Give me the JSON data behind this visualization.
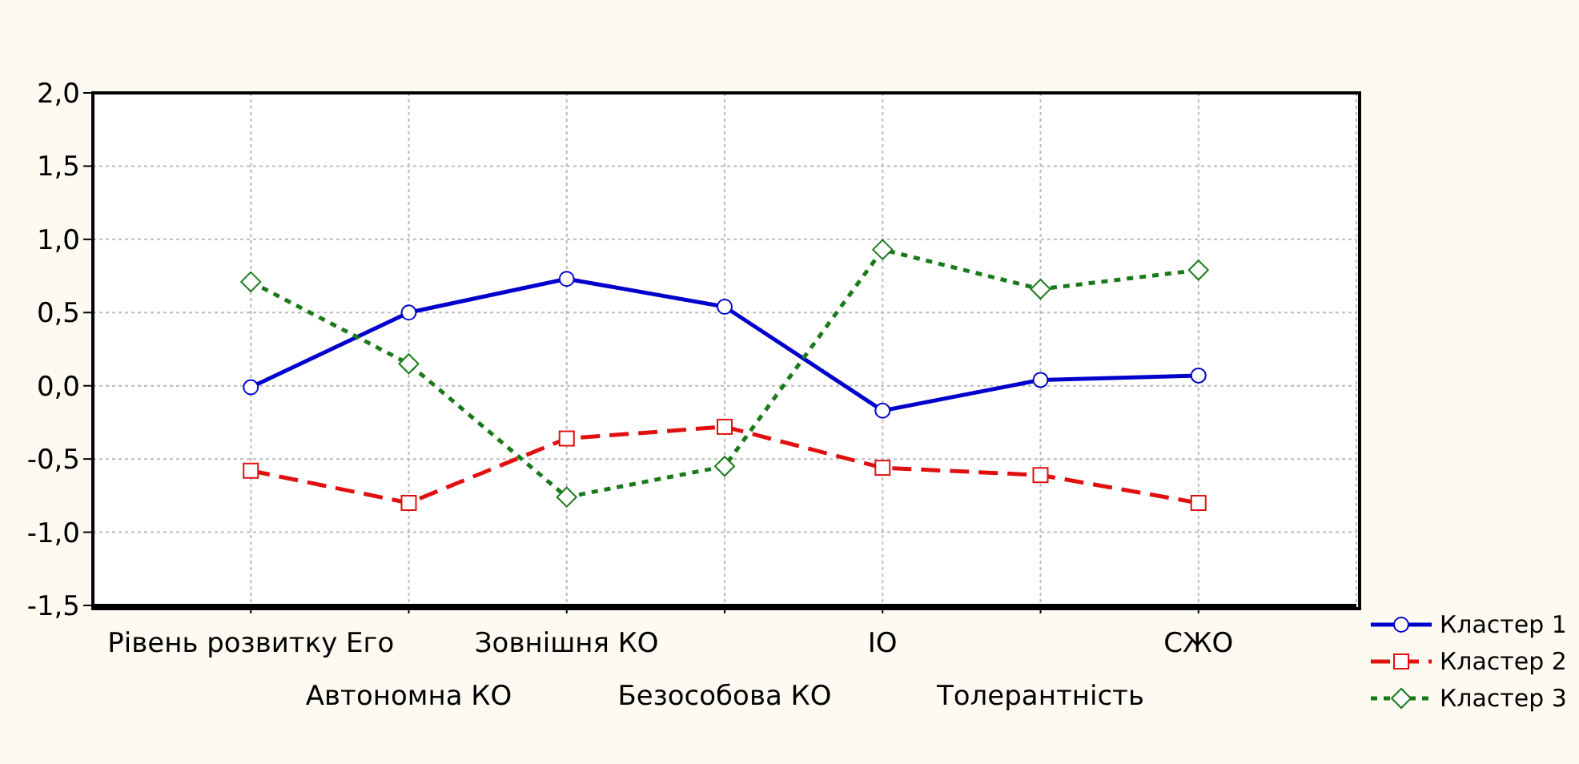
{
  "chart_data": {
    "type": "line",
    "categories": [
      "Рівень розвитку Его",
      "Автономна КО",
      "Зовнішня КО",
      "Безособова КО",
      "ІО",
      "Толерантність",
      "СЖО"
    ],
    "series": [
      {
        "name": "Кластер 1",
        "color": "#0000cc",
        "marker": "circle",
        "line_style": "solid",
        "values": [
          -0.01,
          0.5,
          0.73,
          0.54,
          -0.17,
          0.04,
          0.07
        ]
      },
      {
        "name": "Кластер 2",
        "color": "#e01010",
        "marker": "square",
        "line_style": "dashed",
        "values": [
          -0.58,
          -0.8,
          -0.36,
          -0.28,
          -0.56,
          -0.61,
          -0.8
        ]
      },
      {
        "name": "Кластер 3",
        "color": "#1a7a1a",
        "marker": "diamond",
        "line_style": "dotted",
        "values": [
          0.71,
          0.15,
          -0.76,
          -0.55,
          0.93,
          0.66,
          0.79
        ]
      }
    ],
    "ylim": [
      -1.5,
      2
    ],
    "yticks": [
      {
        "value": -1.5,
        "label": "-1,5"
      },
      {
        "value": -1,
        "label": "-1,0"
      },
      {
        "value": -0.5,
        "label": "-0,5"
      },
      {
        "value": 0,
        "label": "0,0"
      },
      {
        "value": 0.5,
        "label": "0,5"
      },
      {
        "value": 1,
        "label": "1,0"
      },
      {
        "value": 1.5,
        "label": "1,5"
      },
      {
        "value": 2,
        "label": "2,0"
      }
    ],
    "grid": true,
    "legend": "bottom right"
  }
}
